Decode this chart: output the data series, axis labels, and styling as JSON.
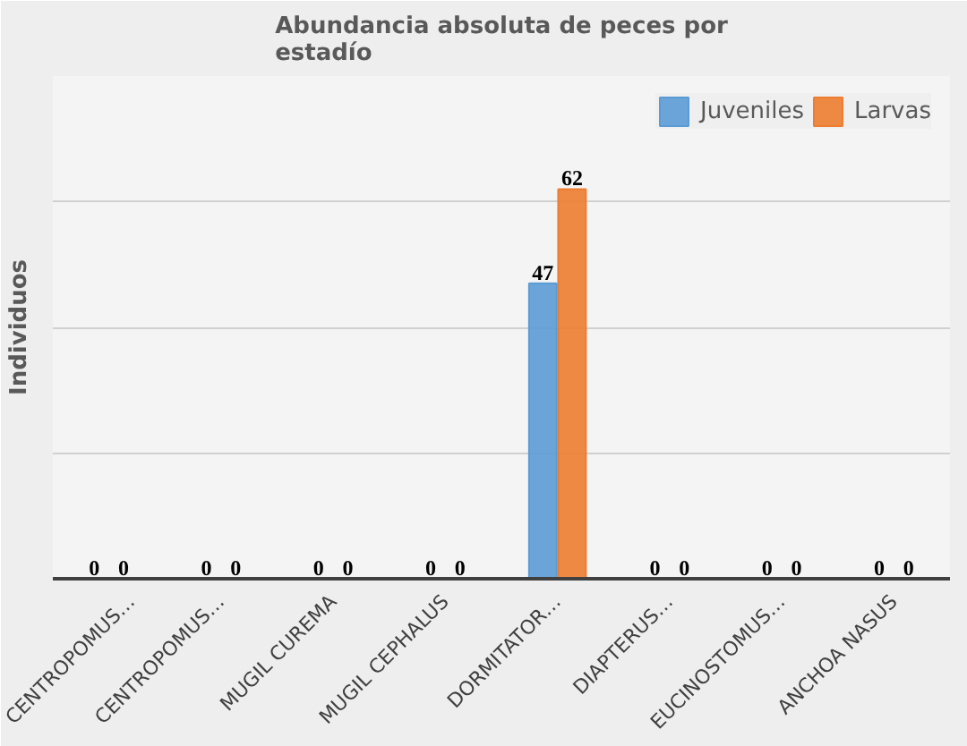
{
  "chart_data": {
    "type": "bar",
    "title": "Abundancia absoluta de peces por estadío",
    "ylabel": "Individuos",
    "categories": [
      "CENTROPOMUS…",
      "CENTROPOMUS…",
      "MUGIL CUREMA",
      "MUGIL CEPHALUS",
      "DORMITATOR…",
      "DIAPTERUS…",
      "EUCINOSTOMUS…",
      "ANCHOA NASUS"
    ],
    "series": [
      {
        "name": "Juveniles",
        "color": "#5b9bd5",
        "values": [
          0,
          0,
          0,
          0,
          47,
          0,
          0,
          0
        ]
      },
      {
        "name": "Larvas",
        "color": "#ed7d31",
        "values": [
          0,
          0,
          0,
          0,
          62,
          0,
          0,
          0
        ]
      }
    ],
    "ylim": [
      0,
      80
    ],
    "yticks": [
      {
        "value": 0,
        "label": null
      },
      {
        "value": 20,
        "label": null
      },
      {
        "value": 40,
        "label": null
      },
      {
        "value": 60,
        "label": null
      },
      {
        "value": 80,
        "label": null
      }
    ],
    "grid": "y",
    "legend": "top right",
    "data_labels": true,
    "tick_labels": "x"
  }
}
